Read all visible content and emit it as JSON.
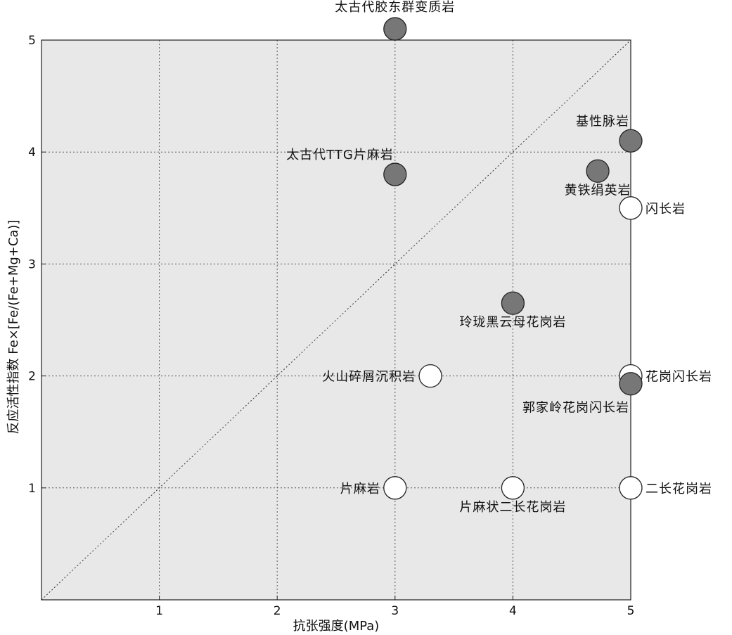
{
  "chart_data": {
    "type": "scatter",
    "title": "",
    "xlabel": "抗张强度(MPa)",
    "ylabel": "反应活性指数 Fe×[Fe/(Fe+Mg+Ca)]",
    "xlim": [
      0,
      5
    ],
    "ylim": [
      0,
      5
    ],
    "x_ticks": [
      1,
      2,
      3,
      4,
      5
    ],
    "y_ticks": [
      1,
      2,
      3,
      4,
      5
    ],
    "grid": true,
    "diagonal_reference": true,
    "colors": {
      "filled": "#777777",
      "open": "#ffffff",
      "background": "#e8e8e8"
    },
    "points": [
      {
        "name": "太古代胶东群变质岩",
        "x": 3.0,
        "y": 5.1,
        "filled": true,
        "label_pos": "above"
      },
      {
        "name": "太古代TTG片麻岩",
        "x": 3.0,
        "y": 3.8,
        "filled": true,
        "label_pos": "above-left"
      },
      {
        "name": "基性脉岩",
        "x": 5.0,
        "y": 4.1,
        "filled": true,
        "label_pos": "above-left"
      },
      {
        "name": "黄铁绢英岩",
        "x": 4.72,
        "y": 3.83,
        "filled": true,
        "label_pos": "below"
      },
      {
        "name": "闪长岩",
        "x": 5.0,
        "y": 3.5,
        "filled": false,
        "label_pos": "right"
      },
      {
        "name": "玲珑黑云母花岗岩",
        "x": 4.0,
        "y": 2.65,
        "filled": true,
        "label_pos": "below"
      },
      {
        "name": "火山碎屑沉积岩",
        "x": 3.3,
        "y": 2.0,
        "filled": false,
        "label_pos": "left"
      },
      {
        "name": "花岗闪长岩",
        "x": 5.0,
        "y": 2.0,
        "filled": false,
        "label_pos": "right"
      },
      {
        "name": "郭家岭花岗闪长岩",
        "x": 5.0,
        "y": 1.93,
        "filled": true,
        "label_pos": "below-left"
      },
      {
        "name": "片麻岩",
        "x": 3.0,
        "y": 1.0,
        "filled": false,
        "label_pos": "left"
      },
      {
        "name": "片麻状二长花岗岩",
        "x": 4.0,
        "y": 1.0,
        "filled": false,
        "label_pos": "below"
      },
      {
        "name": "二长花岗岩",
        "x": 5.0,
        "y": 1.0,
        "filled": false,
        "label_pos": "right"
      }
    ]
  }
}
